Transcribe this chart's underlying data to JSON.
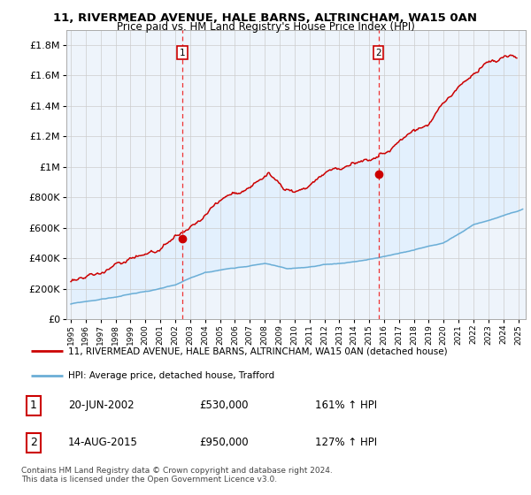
{
  "title": "11, RIVERMEAD AVENUE, HALE BARNS, ALTRINCHAM, WA15 0AN",
  "subtitle": "Price paid vs. HM Land Registry's House Price Index (HPI)",
  "ylabel_ticks": [
    "£0",
    "£200K",
    "£400K",
    "£600K",
    "£800K",
    "£1M",
    "£1.2M",
    "£1.4M",
    "£1.6M",
    "£1.8M"
  ],
  "ylabel_values": [
    0,
    200000,
    400000,
    600000,
    800000,
    1000000,
    1200000,
    1400000,
    1600000,
    1800000
  ],
  "ylim": [
    0,
    1900000
  ],
  "xlim_start": 1994.7,
  "xlim_end": 2025.5,
  "red_line_color": "#cc0000",
  "blue_line_color": "#6baed6",
  "plot_fill_color": "#ddeeff",
  "dashed_line_color": "#ee3333",
  "sale1_x": 2002.47,
  "sale1_y": 530000,
  "sale2_x": 2015.62,
  "sale2_y": 950000,
  "legend_entry1": "11, RIVERMEAD AVENUE, HALE BARNS, ALTRINCHAM, WA15 0AN (detached house)",
  "legend_entry2": "HPI: Average price, detached house, Trafford",
  "table_row1_num": "1",
  "table_row1_date": "20-JUN-2002",
  "table_row1_price": "£530,000",
  "table_row1_hpi": "161% ↑ HPI",
  "table_row2_num": "2",
  "table_row2_date": "14-AUG-2015",
  "table_row2_price": "£950,000",
  "table_row2_hpi": "127% ↑ HPI",
  "footnote1": "Contains HM Land Registry data © Crown copyright and database right 2024.",
  "footnote2": "This data is licensed under the Open Government Licence v3.0.",
  "background_color": "#ffffff",
  "plot_bg_color": "#eef4fb",
  "grid_color": "#cccccc"
}
